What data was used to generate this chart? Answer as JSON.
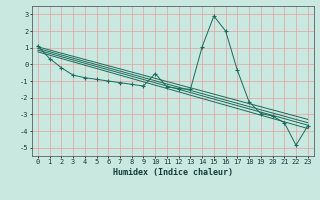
{
  "xlabel": "Humidex (Indice chaleur)",
  "bg_color": "#c8e8e0",
  "grid_color": "#e8a0a0",
  "line_color": "#1a6b5a",
  "xlim": [
    -0.5,
    23.5
  ],
  "ylim": [
    -5.5,
    3.5
  ],
  "yticks": [
    -5,
    -4,
    -3,
    -2,
    -1,
    0,
    1,
    2,
    3
  ],
  "xticks": [
    0,
    1,
    2,
    3,
    4,
    5,
    6,
    7,
    8,
    9,
    10,
    11,
    12,
    13,
    14,
    15,
    16,
    17,
    18,
    19,
    20,
    21,
    22,
    23
  ],
  "main_data": [
    [
      0,
      1.1
    ],
    [
      1,
      0.35
    ],
    [
      2,
      -0.2
    ],
    [
      3,
      -0.65
    ],
    [
      4,
      -0.8
    ],
    [
      5,
      -0.9
    ],
    [
      6,
      -1.0
    ],
    [
      7,
      -1.1
    ],
    [
      8,
      -1.2
    ],
    [
      9,
      -1.3
    ],
    [
      10,
      -0.55
    ],
    [
      11,
      -1.35
    ],
    [
      12,
      -1.45
    ],
    [
      13,
      -1.5
    ],
    [
      14,
      1.05
    ],
    [
      15,
      2.9
    ],
    [
      16,
      2.0
    ],
    [
      17,
      -0.35
    ],
    [
      18,
      -2.25
    ],
    [
      19,
      -2.95
    ],
    [
      20,
      -3.1
    ],
    [
      21,
      -3.5
    ],
    [
      22,
      -4.85
    ],
    [
      23,
      -3.7
    ]
  ],
  "reg_lines": [
    [
      [
        0,
        1.05
      ],
      [
        23,
        -3.3
      ]
    ],
    [
      [
        0,
        0.95
      ],
      [
        23,
        -3.5
      ]
    ],
    [
      [
        0,
        0.85
      ],
      [
        23,
        -3.65
      ]
    ],
    [
      [
        0,
        0.75
      ],
      [
        23,
        -3.85
      ]
    ]
  ]
}
